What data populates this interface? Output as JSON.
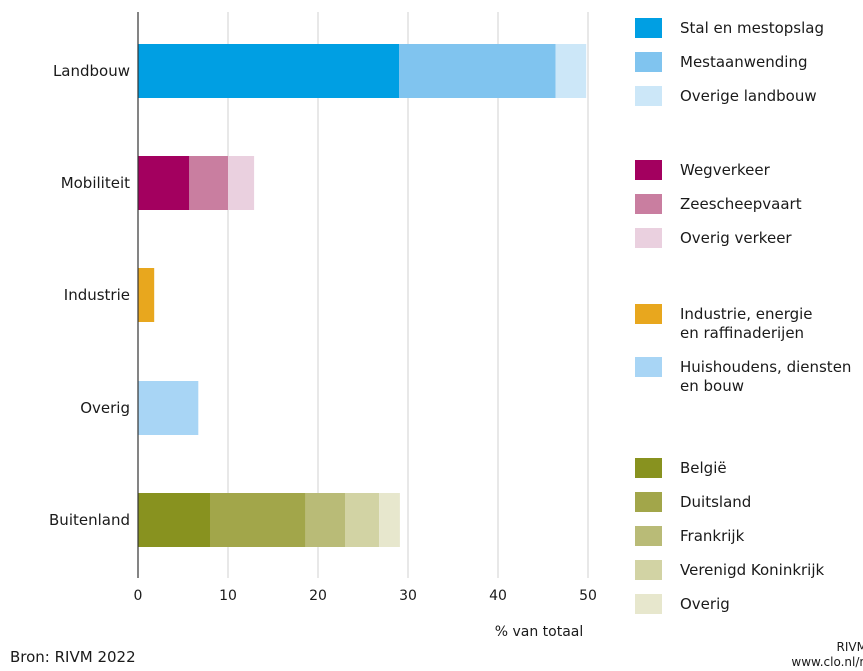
{
  "chart_data": {
    "type": "bar",
    "orientation": "horizontal",
    "stacked": true,
    "xlabel": "% van totaal",
    "xlim": [
      0,
      50
    ],
    "xticks": [
      0,
      10,
      20,
      30,
      40,
      50
    ],
    "grid": "vertical",
    "categories": [
      {
        "label": "Landbouw",
        "segments": [
          {
            "name": "Stal en mestopslag",
            "value": 29.0,
            "color": "#009fe3"
          },
          {
            "name": "Mestaanwending",
            "value": 17.4,
            "color": "#80c4ef"
          },
          {
            "name": "Overige landbouw",
            "value": 3.4,
            "color": "#cce7f8"
          }
        ]
      },
      {
        "label": "Mobiliteit",
        "segments": [
          {
            "name": "Wegverkeer",
            "value": 5.7,
            "color": "#a3005f"
          },
          {
            "name": "Zeescheepvaart",
            "value": 4.3,
            "color": "#c97ea0"
          },
          {
            "name": "Overig verkeer",
            "value": 2.9,
            "color": "#ead0df"
          }
        ]
      },
      {
        "label": "Industrie",
        "segments": [
          {
            "name": "Industrie, energie en raffinaderijen",
            "value": 1.8,
            "color": "#e8a71e"
          }
        ]
      },
      {
        "label": "Overig",
        "segments": [
          {
            "name": "Huishoudens, diensten en bouw",
            "value": 6.7,
            "color": "#a8d5f5"
          }
        ]
      },
      {
        "label": "Buitenland",
        "segments": [
          {
            "name": "België",
            "value": 8.0,
            "color": "#88921f"
          },
          {
            "name": "Duitsland",
            "value": 10.6,
            "color": "#a2a64a"
          },
          {
            "name": "Frankrijk",
            "value": 4.4,
            "color": "#b9bb77"
          },
          {
            "name": "Verenigd Koninkrijk",
            "value": 3.8,
            "color": "#d2d3a4"
          },
          {
            "name": "Overig",
            "value": 2.3,
            "color": "#e7e7cd"
          }
        ]
      }
    ],
    "legend_placement": "right",
    "legend_groups": [
      [
        {
          "lines": [
            "Stal en mestopslag"
          ],
          "color": "#009fe3"
        },
        {
          "lines": [
            "Mestaanwending"
          ],
          "color": "#80c4ef"
        },
        {
          "lines": [
            "Overige landbouw"
          ],
          "color": "#cce7f8"
        }
      ],
      [
        {
          "lines": [
            "Wegverkeer"
          ],
          "color": "#a3005f"
        },
        {
          "lines": [
            "Zeescheepvaart"
          ],
          "color": "#c97ea0"
        },
        {
          "lines": [
            "Overig verkeer"
          ],
          "color": "#ead0df"
        }
      ],
      [
        {
          "lines": [
            "Industrie, energie",
            "en raffinaderijen"
          ],
          "color": "#e8a71e"
        },
        {
          "lines": [
            "Huishoudens, diensten",
            "en bouw"
          ],
          "color": "#a8d5f5"
        }
      ],
      [
        {
          "lines": [
            "België"
          ],
          "color": "#88921f"
        },
        {
          "lines": [
            "Duitsland"
          ],
          "color": "#a2a64a"
        },
        {
          "lines": [
            "Frankrijk"
          ],
          "color": "#b9bb77"
        },
        {
          "lines": [
            "Verenigd Koninkrijk"
          ],
          "color": "#d2d3a4"
        },
        {
          "lines": [
            "Overig"
          ],
          "color": "#e7e7cd"
        }
      ]
    ]
  },
  "footer": {
    "source": "Bron: RIVM 2022",
    "credit": "RIVM",
    "url": "www.clo.nl/n"
  }
}
